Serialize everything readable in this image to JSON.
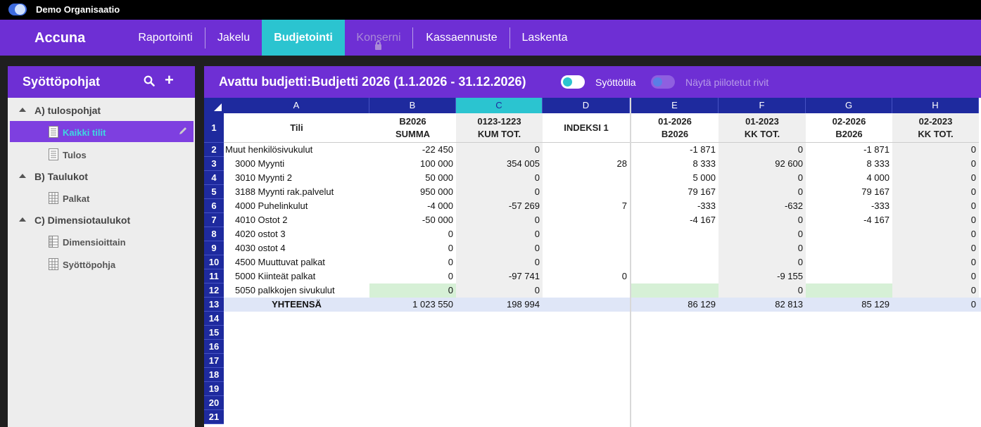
{
  "org": {
    "name": "Demo Organisaatio"
  },
  "nav": {
    "brand": "Accuna",
    "items": [
      "Raportointi",
      "Jakelu",
      "Budjetointi",
      "Konserni",
      "Kassaennuste",
      "Laskenta"
    ],
    "active": "Budjetointi",
    "disabled": "Konserni"
  },
  "sidebar": {
    "title": "Syöttöpohjat",
    "groups": [
      {
        "label": "A) tulospohjat",
        "items": [
          {
            "label": "Kaikki tilit",
            "icon": "document-icon",
            "selected": true
          },
          {
            "label": "Tulos",
            "icon": "document-icon"
          }
        ]
      },
      {
        "label": "B) Taulukot",
        "items": [
          {
            "label": "Palkat",
            "icon": "table-icon"
          }
        ]
      },
      {
        "label": "C) Dimensiotaulukot",
        "items": [
          {
            "label": "Dimensioittain",
            "icon": "dimension-table-icon"
          },
          {
            "label": "Syöttöpohja",
            "icon": "table-icon"
          }
        ]
      }
    ]
  },
  "main": {
    "title": "Avattu budjetti:Budjetti 2026 (1.1.2026 - 31.12.2026)",
    "toggle_input": "Syöttötila",
    "toggle_hidden": "Näytä piilotetut rivit"
  },
  "colors": {
    "accent": "#6e2fd4",
    "active_tab": "#2bc4d0",
    "grid_header": "#1e2a9e"
  },
  "grid": {
    "columns": [
      "A",
      "B",
      "C",
      "D",
      "E",
      "F",
      "G",
      "H"
    ],
    "selected_column": "C",
    "header_row": [
      [
        "Tili",
        ""
      ],
      [
        "B2026",
        "SUMMA"
      ],
      [
        "0123-1223",
        "KUM TOT."
      ],
      [
        "INDEKSI 1",
        ""
      ],
      [
        "01-2026",
        "B2026"
      ],
      [
        "01-2023",
        "KK TOT."
      ],
      [
        "02-2026",
        "B2026"
      ],
      [
        "02-2023",
        "KK TOT."
      ]
    ],
    "rows": [
      [
        "Muut henkilösivukulut",
        "-22 450",
        "0",
        "",
        "-1 871",
        "0",
        "-1 871",
        "0"
      ],
      [
        "3000 Myynti",
        "100 000",
        "354 005",
        "28",
        "8 333",
        "92 600",
        "8 333",
        "0"
      ],
      [
        "3010 Myynti 2",
        "50 000",
        "0",
        "",
        "5 000",
        "0",
        "4 000",
        "0"
      ],
      [
        "3188 Myynti rak.palvelut",
        "950 000",
        "0",
        "",
        "79 167",
        "0",
        "79 167",
        "0"
      ],
      [
        "4000 Puhelinkulut",
        "-4 000",
        "-57 269",
        "7",
        "-333",
        "-632",
        "-333",
        "0"
      ],
      [
        "4010 Ostot 2",
        "-50 000",
        "0",
        "",
        "-4 167",
        "0",
        "-4 167",
        "0"
      ],
      [
        "4020 ostot 3",
        "0",
        "0",
        "",
        "",
        "0",
        "",
        "0"
      ],
      [
        "4030 ostot 4",
        "0",
        "0",
        "",
        "",
        "0",
        "",
        "0"
      ],
      [
        "4500 Muuttuvat palkat",
        "0",
        "0",
        "",
        "",
        "0",
        "",
        "0"
      ],
      [
        "5000 Kiinteät palkat",
        "0",
        "-97 741",
        "0",
        "",
        "-9 155",
        "",
        "0"
      ],
      [
        "5050 palkkojen sivukulut",
        "0",
        "0",
        "",
        "",
        "0",
        "",
        "0"
      ],
      [
        "YHTEENSÄ",
        "1 023 550",
        "198 994",
        "",
        "86 129",
        "82 813",
        "85 129",
        "0"
      ]
    ],
    "row_numbers": [
      "1",
      "2",
      "3",
      "4",
      "5",
      "6",
      "7",
      "8",
      "9",
      "10",
      "11",
      "12",
      "13",
      "14",
      "15",
      "16",
      "17",
      "18",
      "19",
      "20",
      "21"
    ]
  }
}
